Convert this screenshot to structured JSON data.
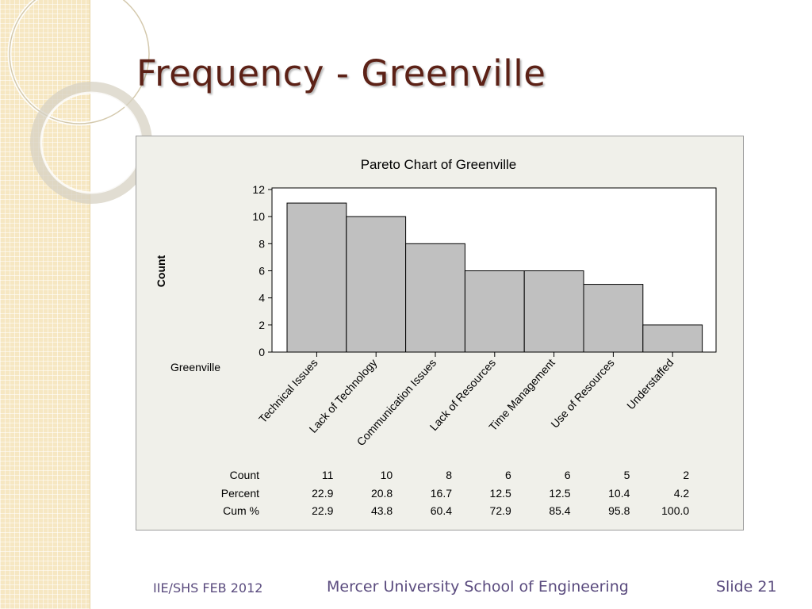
{
  "slide": {
    "title": "Frequency - Greenville",
    "footer_left": "IIE/SHS   FEB 2012",
    "footer_center": "Mercer University School of Engineering",
    "footer_right": "Slide 21"
  },
  "chart_data": {
    "type": "bar",
    "title": "Pareto Chart of Greenville",
    "xlabel": "Greenville",
    "ylabel": "Count",
    "ylim": [
      0,
      12
    ],
    "yticks": [
      0,
      2,
      4,
      6,
      8,
      10,
      12
    ],
    "categories": [
      "Technical Issues",
      "Lack of Technology",
      "Communication Issues",
      "Lack of Resources",
      "Time Management",
      "Use of Resources",
      "Understaffed"
    ],
    "values": [
      11,
      10,
      8,
      6,
      6,
      5,
      2
    ],
    "table": {
      "row_labels": [
        "Count",
        "Percent",
        "Cum %"
      ],
      "count": [
        "11",
        "10",
        "8",
        "6",
        "6",
        "5",
        "2"
      ],
      "percent": [
        "22.9",
        "20.8",
        "16.7",
        "12.5",
        "12.5",
        "10.4",
        "4.2"
      ],
      "cum_percent": [
        "22.9",
        "43.8",
        "60.4",
        "72.9",
        "85.4",
        "95.8",
        "100.0"
      ]
    },
    "bar_color": "#c0c0c0",
    "grid": false
  }
}
